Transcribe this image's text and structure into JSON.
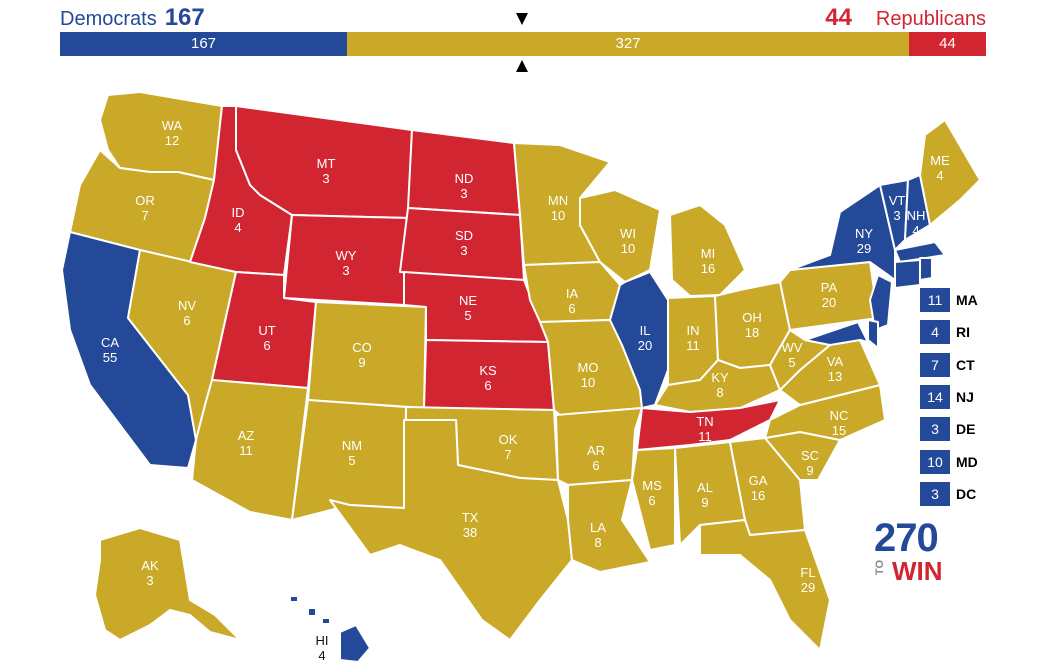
{
  "header": {
    "dem_label": "Democrats",
    "dem_votes": "167",
    "rep_votes": "44",
    "rep_label": "Republicans"
  },
  "bar": {
    "dem": "167",
    "tossup": "327",
    "rep": "44"
  },
  "colors": {
    "dem": "#244999",
    "rep": "#d22532",
    "tossup": "#c9a927"
  },
  "states": [
    {
      "abbr": "WA",
      "ev": "12",
      "party": "tossup"
    },
    {
      "abbr": "OR",
      "ev": "7",
      "party": "tossup"
    },
    {
      "abbr": "CA",
      "ev": "55",
      "party": "dem"
    },
    {
      "abbr": "NV",
      "ev": "6",
      "party": "tossup"
    },
    {
      "abbr": "ID",
      "ev": "4",
      "party": "rep"
    },
    {
      "abbr": "MT",
      "ev": "3",
      "party": "rep"
    },
    {
      "abbr": "WY",
      "ev": "3",
      "party": "rep"
    },
    {
      "abbr": "UT",
      "ev": "6",
      "party": "rep"
    },
    {
      "abbr": "AZ",
      "ev": "11",
      "party": "tossup"
    },
    {
      "abbr": "CO",
      "ev": "9",
      "party": "tossup"
    },
    {
      "abbr": "NM",
      "ev": "5",
      "party": "tossup"
    },
    {
      "abbr": "ND",
      "ev": "3",
      "party": "rep"
    },
    {
      "abbr": "SD",
      "ev": "3",
      "party": "rep"
    },
    {
      "abbr": "NE",
      "ev": "5",
      "party": "rep"
    },
    {
      "abbr": "KS",
      "ev": "6",
      "party": "rep"
    },
    {
      "abbr": "OK",
      "ev": "7",
      "party": "tossup"
    },
    {
      "abbr": "TX",
      "ev": "38",
      "party": "tossup"
    },
    {
      "abbr": "MN",
      "ev": "10",
      "party": "tossup"
    },
    {
      "abbr": "IA",
      "ev": "6",
      "party": "tossup"
    },
    {
      "abbr": "MO",
      "ev": "10",
      "party": "tossup"
    },
    {
      "abbr": "AR",
      "ev": "6",
      "party": "tossup"
    },
    {
      "abbr": "LA",
      "ev": "8",
      "party": "tossup"
    },
    {
      "abbr": "WI",
      "ev": "10",
      "party": "tossup"
    },
    {
      "abbr": "IL",
      "ev": "20",
      "party": "dem"
    },
    {
      "abbr": "MI",
      "ev": "16",
      "party": "tossup"
    },
    {
      "abbr": "IN",
      "ev": "11",
      "party": "tossup"
    },
    {
      "abbr": "OH",
      "ev": "18",
      "party": "tossup"
    },
    {
      "abbr": "KY",
      "ev": "8",
      "party": "tossup"
    },
    {
      "abbr": "TN",
      "ev": "11",
      "party": "rep"
    },
    {
      "abbr": "MS",
      "ev": "6",
      "party": "tossup"
    },
    {
      "abbr": "AL",
      "ev": "9",
      "party": "tossup"
    },
    {
      "abbr": "GA",
      "ev": "16",
      "party": "tossup"
    },
    {
      "abbr": "FL",
      "ev": "29",
      "party": "tossup"
    },
    {
      "abbr": "SC",
      "ev": "9",
      "party": "tossup"
    },
    {
      "abbr": "NC",
      "ev": "15",
      "party": "tossup"
    },
    {
      "abbr": "VA",
      "ev": "13",
      "party": "tossup"
    },
    {
      "abbr": "WV",
      "ev": "5",
      "party": "tossup"
    },
    {
      "abbr": "PA",
      "ev": "20",
      "party": "tossup"
    },
    {
      "abbr": "NY",
      "ev": "29",
      "party": "dem"
    },
    {
      "abbr": "VT",
      "ev": "3",
      "party": "dem"
    },
    {
      "abbr": "NH",
      "ev": "4",
      "party": "dem"
    },
    {
      "abbr": "ME",
      "ev": "4",
      "party": "tossup"
    },
    {
      "abbr": "AK",
      "ev": "3",
      "party": "tossup"
    },
    {
      "abbr": "HI",
      "ev": "4",
      "party": "dem"
    }
  ],
  "small_states": [
    {
      "ev": "11",
      "abbr": "MA"
    },
    {
      "ev": "4",
      "abbr": "RI"
    },
    {
      "ev": "7",
      "abbr": "CT"
    },
    {
      "ev": "14",
      "abbr": "NJ"
    },
    {
      "ev": "3",
      "abbr": "DE"
    },
    {
      "ev": "10",
      "abbr": "MD"
    },
    {
      "ev": "3",
      "abbr": "DC"
    }
  ],
  "logo": {
    "number": "270",
    "to": "TO",
    "win": "WIN"
  }
}
